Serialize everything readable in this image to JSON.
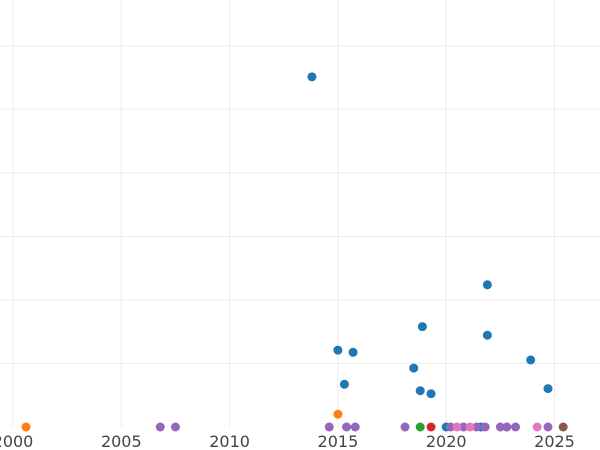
{
  "chart_data": {
    "type": "scatter",
    "title": "",
    "xlabel": "",
    "ylabel": "",
    "xlim": [
      1999.4,
      2027.1
    ],
    "ylim": [
      0,
      1.0
    ],
    "x_ticks": [
      2000,
      2005,
      2010,
      2015,
      2020,
      2025
    ],
    "x_tick_labels": [
      "2000",
      "2005",
      "2010",
      "2015",
      "2020",
      "2025"
    ],
    "y_gridlines": [
      0.149,
      0.297,
      0.446,
      0.595,
      0.744,
      0.892
    ],
    "y_tick_labels": [],
    "grid": true,
    "legend": "none",
    "series": [
      {
        "color": "#1f77b4",
        "points": [
          [
            2013.8,
            0.82
          ],
          [
            2015.0,
            0.18
          ],
          [
            2015.7,
            0.175
          ],
          [
            2015.3,
            0.1
          ],
          [
            2018.5,
            0.138
          ],
          [
            2018.8,
            0.085
          ],
          [
            2018.9,
            0.235
          ],
          [
            2019.3,
            0.078
          ],
          [
            2021.9,
            0.333
          ],
          [
            2021.9,
            0.215
          ],
          [
            2023.9,
            0.157
          ],
          [
            2024.7,
            0.09
          ],
          [
            2021.6,
            0.0
          ],
          [
            2020.0,
            0.0
          ]
        ]
      },
      {
        "color": "#ff7f0e",
        "points": [
          [
            2000.6,
            0.0
          ],
          [
            2015.0,
            0.03
          ]
        ]
      },
      {
        "color": "#2ca02c",
        "points": [
          [
            2018.8,
            0.0
          ]
        ]
      },
      {
        "color": "#d62728",
        "points": [
          [
            2019.3,
            0.0
          ]
        ]
      },
      {
        "color": "#9467bd",
        "points": [
          [
            2006.8,
            0.0
          ],
          [
            2007.5,
            0.0
          ],
          [
            2014.6,
            0.0
          ],
          [
            2015.4,
            0.0
          ],
          [
            2015.8,
            0.0
          ],
          [
            2018.1,
            0.0
          ],
          [
            2020.2,
            0.0
          ],
          [
            2020.8,
            0.0
          ],
          [
            2021.4,
            0.0
          ],
          [
            2021.8,
            0.0
          ],
          [
            2022.5,
            0.0
          ],
          [
            2022.8,
            0.0
          ],
          [
            2023.2,
            0.0
          ],
          [
            2024.7,
            0.0
          ]
        ]
      },
      {
        "color": "#e377c2",
        "points": [
          [
            2020.5,
            0.0
          ],
          [
            2021.1,
            0.0
          ],
          [
            2024.2,
            0.0
          ]
        ]
      },
      {
        "color": "#8c564b",
        "points": [
          [
            2025.4,
            0.0
          ]
        ]
      }
    ]
  }
}
